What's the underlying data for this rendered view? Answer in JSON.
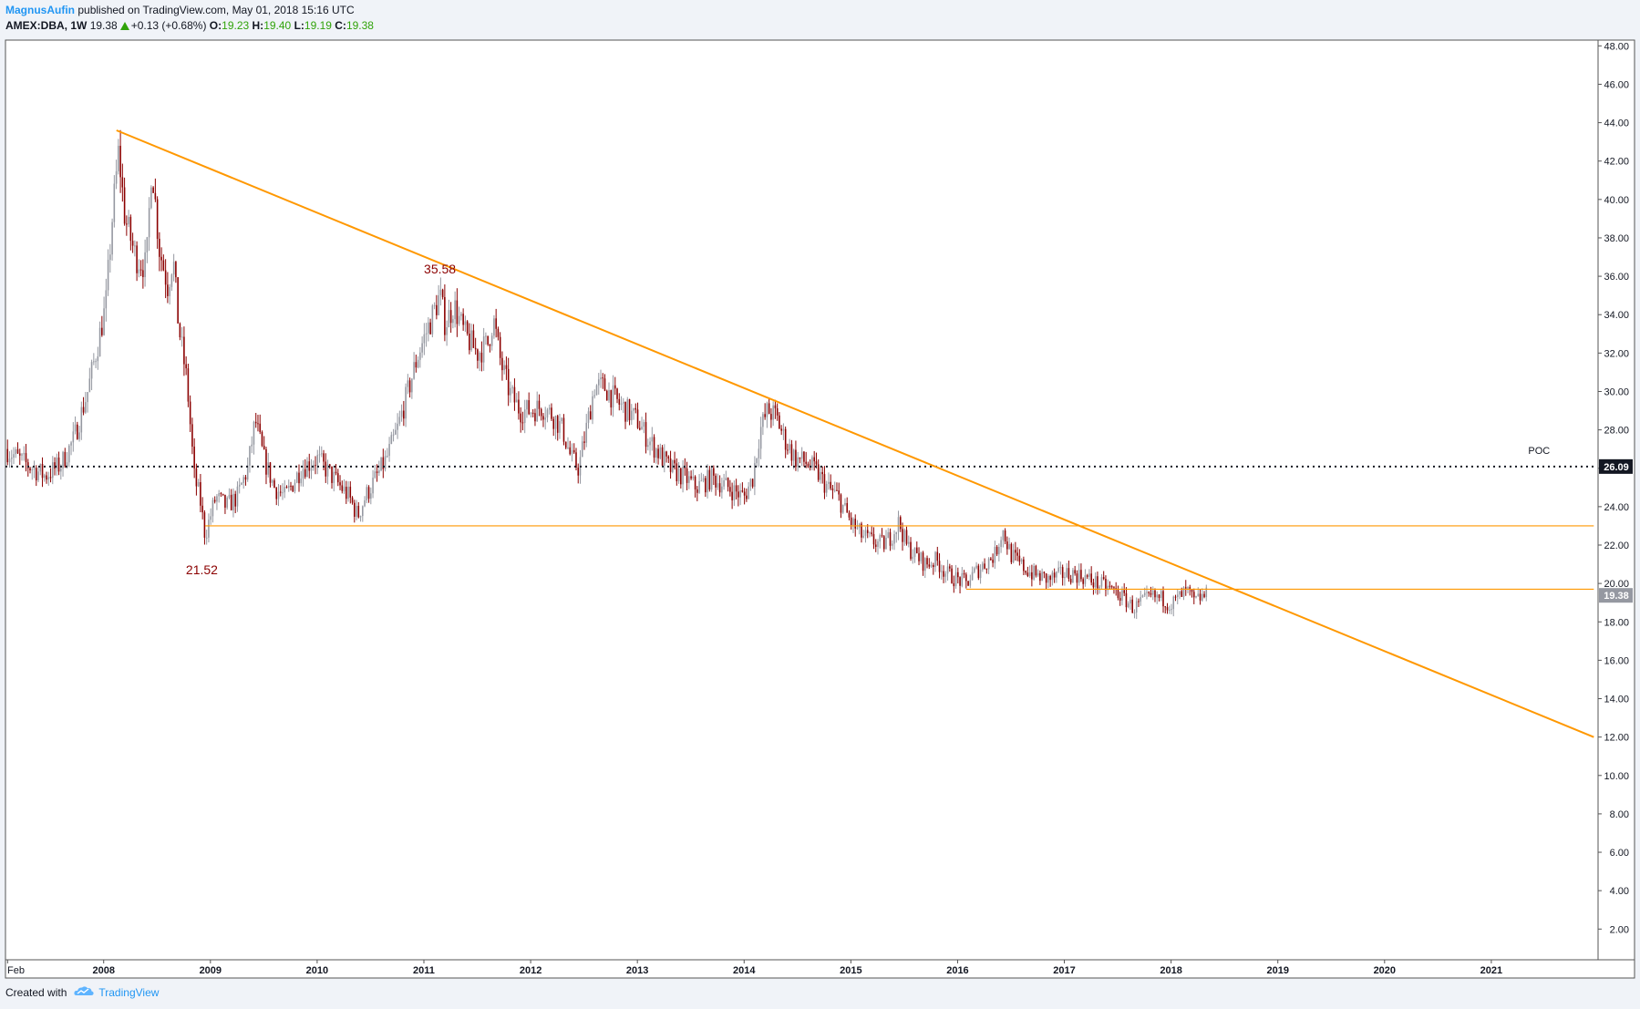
{
  "header": {
    "author": "MagnusAufin",
    "published_text": "published on TradingView.com, May 01, 2018 15:16 UTC",
    "symbol": "AMEX:DBA, 1W",
    "last": "19.38",
    "change": "+0.13 (+0.68%)",
    "o_label": "O:",
    "o_value": "19.23",
    "h_label": "H:",
    "h_value": "19.40",
    "l_label": "L:",
    "l_value": "19.19",
    "c_label": "C:",
    "c_value": "19.38"
  },
  "footer": {
    "created_with": "Created with",
    "brand": "TradingView",
    "logo_icon": "tradingview-cloud-icon"
  },
  "colors": {
    "up": "#9598a1",
    "down": "#8b0000",
    "trend": "#ff9800",
    "poc": "#131722",
    "label_red": "#8b0000",
    "background": "#ffffff",
    "page_bg": "#f0f3f8",
    "price_tag_last": "#9598a1"
  },
  "chart_data": {
    "type": "candlestick",
    "title": "AMEX:DBA, 1W",
    "x_ticks": [
      "Feb",
      "2008",
      "2009",
      "2010",
      "2011",
      "2012",
      "2013",
      "2014",
      "2015",
      "2016",
      "2017",
      "2018",
      "2019",
      "2020",
      "2021"
    ],
    "x_tick_values": [
      2007.1,
      2008.0,
      2009.0,
      2010.0,
      2011.0,
      2012.0,
      2013.0,
      2014.0,
      2015.0,
      2016.0,
      2017.0,
      2018.0,
      2019.0,
      2020.0,
      2021.0
    ],
    "xlim": [
      2007.08,
      2022.0
    ],
    "ylim": [
      0.4,
      48.3
    ],
    "y_ticks": [
      2,
      4,
      6,
      8,
      10,
      12,
      14,
      16,
      18,
      20,
      22,
      24,
      26,
      28,
      30,
      32,
      34,
      36,
      38,
      40,
      42,
      44,
      46,
      48
    ],
    "y_tick_labels": [
      "2.00",
      "4.00",
      "6.00",
      "8.00",
      "10.00",
      "12.00",
      "14.00",
      "16.00",
      "18.00",
      "20.00",
      "22.00",
      "24.00",
      "26.00",
      "28.00",
      "30.00",
      "32.00",
      "34.00",
      "36.00",
      "38.00",
      "40.00",
      "42.00",
      "44.00",
      "46.00",
      "48.00"
    ],
    "price_path": [
      [
        2007.08,
        27.0
      ],
      [
        2007.25,
        26.3
      ],
      [
        2007.45,
        25.6
      ],
      [
        2007.6,
        26.2
      ],
      [
        2007.72,
        27.5
      ],
      [
        2007.85,
        30.0
      ],
      [
        2007.95,
        32.6
      ],
      [
        2008.02,
        34.5
      ],
      [
        2008.08,
        39.0
      ],
      [
        2008.14,
        42.5
      ],
      [
        2008.2,
        39.0
      ],
      [
        2008.3,
        37.0
      ],
      [
        2008.4,
        36.5
      ],
      [
        2008.45,
        42.0
      ],
      [
        2008.52,
        37.5
      ],
      [
        2008.6,
        35.5
      ],
      [
        2008.65,
        37.0
      ],
      [
        2008.7,
        33.5
      ],
      [
        2008.78,
        30.5
      ],
      [
        2008.85,
        25.5
      ],
      [
        2008.9,
        24.5
      ],
      [
        2008.95,
        22.5
      ],
      [
        2009.05,
        24.5
      ],
      [
        2009.15,
        24.0
      ],
      [
        2009.25,
        24.5
      ],
      [
        2009.35,
        26.0
      ],
      [
        2009.42,
        28.5
      ],
      [
        2009.5,
        26.5
      ],
      [
        2009.6,
        25.0
      ],
      [
        2009.7,
        24.5
      ],
      [
        2009.85,
        26.0
      ],
      [
        2010.0,
        26.5
      ],
      [
        2010.15,
        25.5
      ],
      [
        2010.3,
        24.5
      ],
      [
        2010.38,
        23.5
      ],
      [
        2010.45,
        24.5
      ],
      [
        2010.55,
        25.5
      ],
      [
        2010.65,
        26.5
      ],
      [
        2010.75,
        28.0
      ],
      [
        2010.85,
        30.0
      ],
      [
        2010.95,
        32.0
      ],
      [
        2011.05,
        33.5
      ],
      [
        2011.15,
        35.0
      ],
      [
        2011.2,
        33.5
      ],
      [
        2011.28,
        34.5
      ],
      [
        2011.38,
        33.0
      ],
      [
        2011.5,
        32.0
      ],
      [
        2011.6,
        32.5
      ],
      [
        2011.65,
        33.8
      ],
      [
        2011.72,
        31.5
      ],
      [
        2011.8,
        30.0
      ],
      [
        2011.9,
        29.0
      ],
      [
        2012.0,
        29.0
      ],
      [
        2012.1,
        29.2
      ],
      [
        2012.2,
        28.8
      ],
      [
        2012.3,
        28.0
      ],
      [
        2012.38,
        26.5
      ],
      [
        2012.45,
        26.0
      ],
      [
        2012.52,
        28.0
      ],
      [
        2012.6,
        30.3
      ],
      [
        2012.7,
        30.2
      ],
      [
        2012.8,
        29.5
      ],
      [
        2012.9,
        29.0
      ],
      [
        2013.0,
        28.5
      ],
      [
        2013.1,
        27.5
      ],
      [
        2013.2,
        26.8
      ],
      [
        2013.3,
        26.0
      ],
      [
        2013.45,
        25.5
      ],
      [
        2013.55,
        25.0
      ],
      [
        2013.7,
        25.5
      ],
      [
        2013.85,
        25.0
      ],
      [
        2014.0,
        24.5
      ],
      [
        2014.08,
        25.5
      ],
      [
        2014.15,
        28.0
      ],
      [
        2014.22,
        29.0
      ],
      [
        2014.3,
        28.7
      ],
      [
        2014.38,
        27.5
      ],
      [
        2014.48,
        26.5
      ],
      [
        2014.58,
        26.3
      ],
      [
        2014.68,
        25.8
      ],
      [
        2014.78,
        25.0
      ],
      [
        2014.88,
        24.5
      ],
      [
        2015.0,
        23.2
      ],
      [
        2015.1,
        22.5
      ],
      [
        2015.2,
        22.2
      ],
      [
        2015.3,
        22.0
      ],
      [
        2015.38,
        22.5
      ],
      [
        2015.45,
        23.2
      ],
      [
        2015.52,
        22.0
      ],
      [
        2015.6,
        21.5
      ],
      [
        2015.7,
        21.0
      ],
      [
        2015.8,
        21.2
      ],
      [
        2015.9,
        20.5
      ],
      [
        2016.0,
        20.2
      ],
      [
        2016.08,
        20.0
      ],
      [
        2016.15,
        20.5
      ],
      [
        2016.25,
        21.0
      ],
      [
        2016.35,
        21.5
      ],
      [
        2016.42,
        22.8
      ],
      [
        2016.5,
        21.5
      ],
      [
        2016.58,
        21.0
      ],
      [
        2016.7,
        20.5
      ],
      [
        2016.85,
        20.2
      ],
      [
        2017.0,
        20.5
      ],
      [
        2017.1,
        20.5
      ],
      [
        2017.2,
        20.3
      ],
      [
        2017.3,
        20.0
      ],
      [
        2017.4,
        19.8
      ],
      [
        2017.5,
        19.5
      ],
      [
        2017.6,
        19.0
      ],
      [
        2017.65,
        18.7
      ],
      [
        2017.72,
        19.0
      ],
      [
        2017.82,
        19.3
      ],
      [
        2017.92,
        19.2
      ],
      [
        2018.0,
        18.9
      ],
      [
        2018.08,
        19.3
      ],
      [
        2018.15,
        19.6
      ],
      [
        2018.22,
        19.0
      ],
      [
        2018.28,
        19.3
      ],
      [
        2018.33,
        19.38
      ]
    ],
    "overlays": {
      "descending_trendline": {
        "x1": 2008.12,
        "y1": 43.6,
        "x2": 2021.96,
        "y2": 12.0
      },
      "support_high": {
        "x1": 2008.95,
        "x2": 2021.96,
        "y": 23.0
      },
      "support_low": {
        "x1": 2016.08,
        "x2": 2021.96,
        "y": 19.7
      },
      "poc": {
        "x1": 2007.08,
        "x2": 2021.96,
        "y": 26.09,
        "label": "POC"
      }
    },
    "annotations": [
      {
        "text": "35.58",
        "x": 2011.15,
        "y": 35.58,
        "position": "above"
      },
      {
        "text": "21.52",
        "x": 2008.92,
        "y": 21.52,
        "position": "below"
      }
    ],
    "price_tags": [
      {
        "text": "26.09",
        "y": 26.09,
        "kind": "poc"
      },
      {
        "text": "19.38",
        "y": 19.38,
        "kind": "last"
      }
    ]
  }
}
